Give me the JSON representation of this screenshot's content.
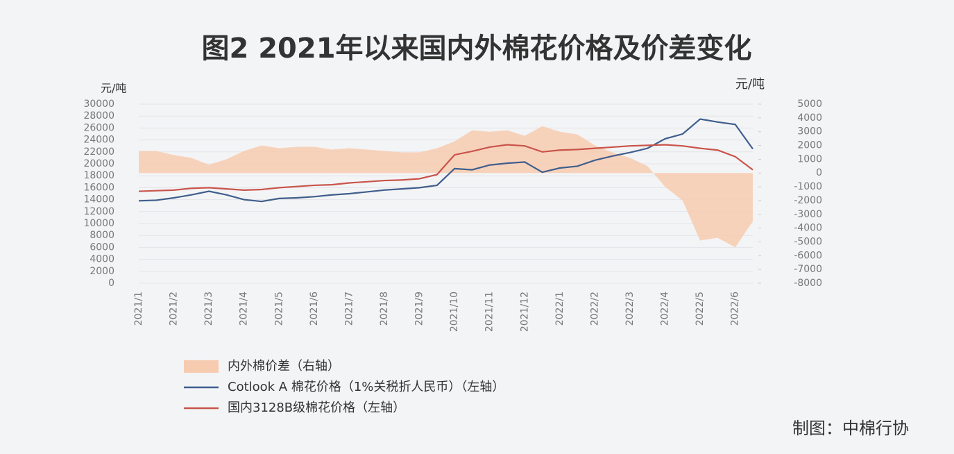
{
  "chart_data": {
    "type": "combo",
    "title": "图2  2021年以来国内外棉花价格及价差变化",
    "y_label": "元/吨",
    "y2_label": "元/吨",
    "source": "制图：中棉行协",
    "categories": [
      "2021/1",
      null,
      "2021/2",
      null,
      "2021/3",
      null,
      "2021/4",
      null,
      "2021/5",
      null,
      "2021/6",
      null,
      "2021/7",
      null,
      "2021/8",
      null,
      "2021/9",
      null,
      "2021/10",
      null,
      "2021/11",
      null,
      "2021/12",
      null,
      "2022/1",
      null,
      "2022/2",
      null,
      "2022/3",
      null,
      "2022/4",
      null,
      "2022/5",
      null,
      "2022/6",
      null
    ],
    "ylim": [
      0,
      30000
    ],
    "yticks": [
      0,
      2000,
      4000,
      6000,
      8000,
      10000,
      12000,
      14000,
      16000,
      18000,
      20000,
      22000,
      24000,
      26000,
      28000,
      30000
    ],
    "y2lim": [
      -8000,
      5000
    ],
    "y2ticks": [
      -8000,
      -7000,
      -6000,
      -5000,
      -4000,
      -3000,
      -2000,
      -1000,
      0,
      1000,
      2000,
      3000,
      4000,
      5000
    ],
    "grid": true,
    "series": [
      {
        "name": "内外棉价差（右轴）",
        "kind": "area",
        "axis": "y2",
        "color": "#f7cbb0",
        "values": [
          1600,
          1600,
          1300,
          1100,
          600,
          1000,
          1600,
          2000,
          1800,
          1900,
          1900,
          1700,
          1800,
          1700,
          1600,
          1500,
          1500,
          1800,
          2300,
          3100,
          3000,
          3100,
          2700,
          3400,
          3000,
          2800,
          2000,
          1500,
          1100,
          500,
          -1000,
          -2000,
          -4900,
          -4700,
          -5400,
          -3500
        ]
      },
      {
        "name": "Cotlook A 棉花价格（1%关税折人民币）（左轴）",
        "kind": "line",
        "color": "#3f5e8c",
        "values": [
          13800,
          13900,
          14300,
          14800,
          15400,
          14800,
          14000,
          13700,
          14200,
          14300,
          14500,
          14800,
          15000,
          15300,
          15600,
          15800,
          16000,
          16400,
          19200,
          19000,
          19800,
          20100,
          20300,
          18600,
          19300,
          19600,
          20600,
          21300,
          21900,
          22600,
          24200,
          25000,
          27500,
          27000,
          26600,
          22500
        ]
      },
      {
        "name": "国内3128B级棉花价格（左轴）",
        "kind": "line",
        "color": "#c9544a",
        "values": [
          15400,
          15500,
          15600,
          15900,
          16000,
          15800,
          15600,
          15700,
          16000,
          16200,
          16400,
          16500,
          16800,
          17000,
          17200,
          17300,
          17500,
          18200,
          21500,
          22100,
          22800,
          23200,
          23000,
          22000,
          22300,
          22400,
          22600,
          22800,
          23000,
          23100,
          23200,
          23000,
          22600,
          22300,
          21200,
          19000
        ]
      }
    ]
  }
}
